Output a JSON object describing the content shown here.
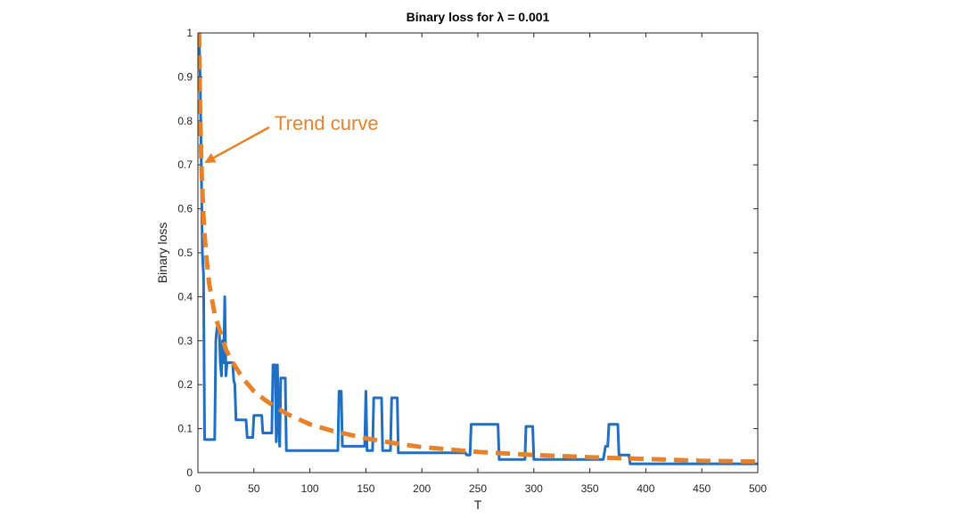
{
  "chart_data": {
    "type": "line",
    "title": "Binary loss for λ = 0.001",
    "xlabel": "T",
    "ylabel": "Binary loss",
    "xlim": [
      0,
      500
    ],
    "ylim": [
      0,
      1
    ],
    "xticks": [
      0,
      50,
      100,
      150,
      200,
      250,
      300,
      350,
      400,
      450,
      500
    ],
    "yticks": [
      0,
      0.1,
      0.2,
      0.3,
      0.4,
      0.5,
      0.6,
      0.7,
      0.8,
      0.9,
      1
    ],
    "grid": false,
    "annotation": {
      "text": "Trend curve",
      "points_to": [
        3,
        0.7
      ],
      "color": "#E8822A"
    },
    "series": [
      {
        "style": "solid",
        "color": "#1F6FC5",
        "points": [
          [
            1,
            1
          ],
          [
            2,
            0.9
          ],
          [
            3,
            0.7
          ],
          [
            4,
            0.5
          ],
          [
            5,
            0.45
          ],
          [
            6,
            0.075
          ],
          [
            10,
            0.075
          ],
          [
            15,
            0.075
          ],
          [
            16,
            0.3
          ],
          [
            17,
            0.33
          ],
          [
            19,
            0.33
          ],
          [
            20,
            0.25
          ],
          [
            21,
            0.22
          ],
          [
            22,
            0.3
          ],
          [
            23,
            0.25
          ],
          [
            24,
            0.4
          ],
          [
            25,
            0.22
          ],
          [
            26,
            0.25
          ],
          [
            31,
            0.25
          ],
          [
            32,
            0.21
          ],
          [
            33,
            0.2
          ],
          [
            34,
            0.12
          ],
          [
            43,
            0.12
          ],
          [
            44,
            0.08
          ],
          [
            49,
            0.08
          ],
          [
            50,
            0.13
          ],
          [
            57,
            0.13
          ],
          [
            58,
            0.09
          ],
          [
            66,
            0.09
          ],
          [
            67,
            0.245
          ],
          [
            69,
            0.245
          ],
          [
            70,
            0.07
          ],
          [
            71,
            0.245
          ],
          [
            72,
            0.12
          ],
          [
            73,
            0.06
          ],
          [
            74,
            0.215
          ],
          [
            78,
            0.215
          ],
          [
            79,
            0.05
          ],
          [
            125,
            0.05
          ],
          [
            126,
            0.185
          ],
          [
            128,
            0.185
          ],
          [
            129,
            0.06
          ],
          [
            149,
            0.06
          ],
          [
            150,
            0.185
          ],
          [
            151,
            0.05
          ],
          [
            156,
            0.05
          ],
          [
            157,
            0.17
          ],
          [
            164,
            0.17
          ],
          [
            165,
            0.05
          ],
          [
            172,
            0.05
          ],
          [
            173,
            0.17
          ],
          [
            178,
            0.17
          ],
          [
            179,
            0.045
          ],
          [
            239,
            0.045
          ],
          [
            240,
            0.04
          ],
          [
            243,
            0.04
          ],
          [
            244,
            0.11
          ],
          [
            268,
            0.11
          ],
          [
            269,
            0.03
          ],
          [
            292,
            0.03
          ],
          [
            293,
            0.105
          ],
          [
            299,
            0.105
          ],
          [
            300,
            0.03
          ],
          [
            362,
            0.03
          ],
          [
            364,
            0.06
          ],
          [
            366,
            0.06
          ],
          [
            367,
            0.11
          ],
          [
            375,
            0.11
          ],
          [
            376,
            0.04
          ],
          [
            385,
            0.04
          ],
          [
            386,
            0.02
          ],
          [
            500,
            0.02
          ]
        ]
      },
      {
        "style": "dashed",
        "color": "#E8822A",
        "points": [
          [
            1,
            1
          ],
          [
            2,
            0.82
          ],
          [
            3,
            0.71
          ],
          [
            4,
            0.64
          ],
          [
            5,
            0.58
          ],
          [
            6,
            0.54
          ],
          [
            8,
            0.48
          ],
          [
            10,
            0.43
          ],
          [
            15,
            0.36
          ],
          [
            20,
            0.32
          ],
          [
            25,
            0.28
          ],
          [
            30,
            0.255
          ],
          [
            40,
            0.215
          ],
          [
            50,
            0.185
          ],
          [
            60,
            0.165
          ],
          [
            70,
            0.148
          ],
          [
            80,
            0.133
          ],
          [
            100,
            0.11
          ],
          [
            120,
            0.095
          ],
          [
            150,
            0.078
          ],
          [
            175,
            0.067
          ],
          [
            200,
            0.058
          ],
          [
            250,
            0.047
          ],
          [
            300,
            0.04
          ],
          [
            350,
            0.035
          ],
          [
            400,
            0.031
          ],
          [
            450,
            0.027
          ],
          [
            500,
            0.025
          ]
        ]
      }
    ]
  }
}
